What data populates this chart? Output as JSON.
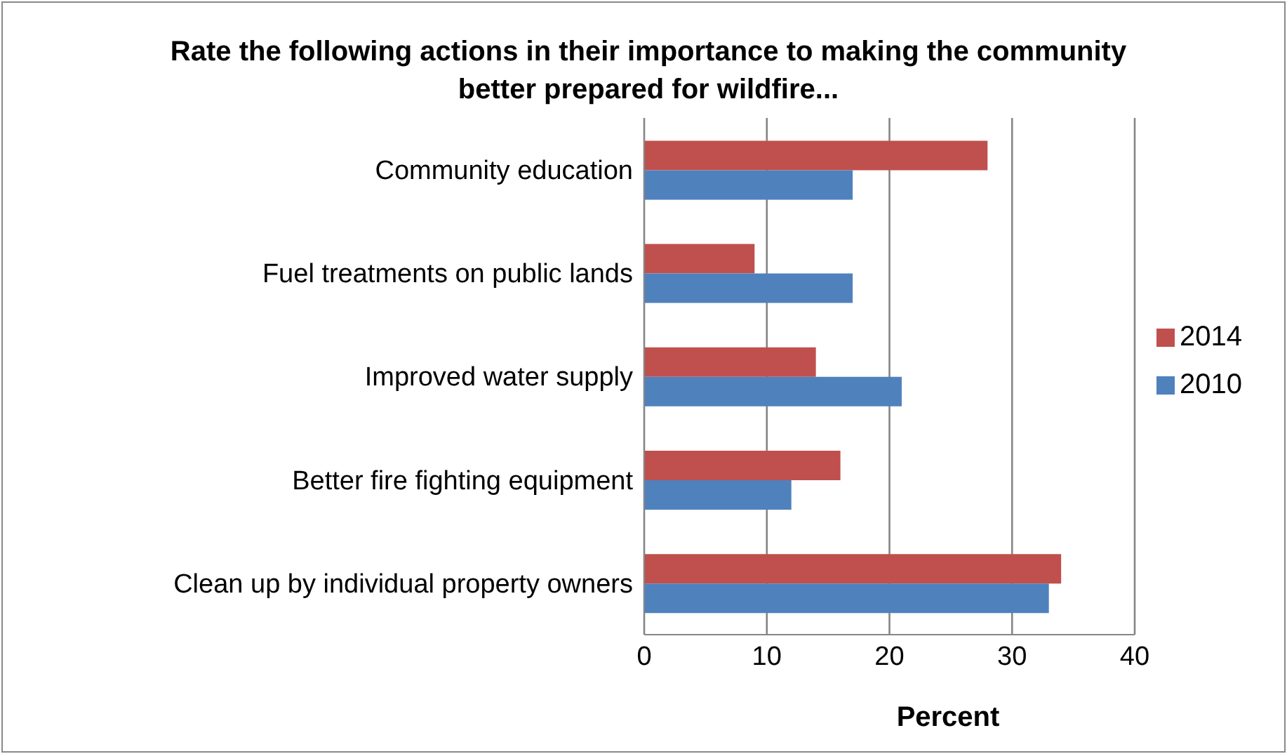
{
  "chart_data": {
    "type": "bar",
    "orientation": "horizontal",
    "title": "Rate the following actions in their importance to making the community better  prepared for wildfire...",
    "xlabel": "Percent",
    "categories": [
      "Community education",
      "Fuel treatments on public lands",
      "Improved water supply",
      "Better fire fighting equipment",
      "Clean up by individual property owners"
    ],
    "series": [
      {
        "name": "2014",
        "color": "#c0504d",
        "values": [
          28,
          9,
          14,
          16,
          34
        ]
      },
      {
        "name": "2010",
        "color": "#4f81bd",
        "values": [
          17,
          17,
          21,
          12,
          33
        ]
      }
    ],
    "xlim": [
      0,
      40
    ],
    "xticks": [
      0,
      10,
      20,
      30,
      40
    ],
    "grid": "x",
    "legend": "right"
  }
}
